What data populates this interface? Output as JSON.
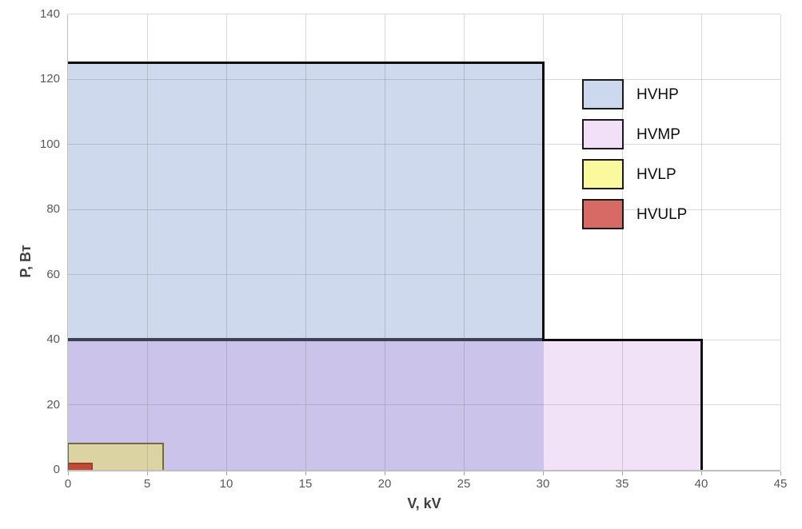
{
  "page": {
    "background": "#FFFFFF"
  },
  "chart_data": {
    "type": "area",
    "title": "",
    "xlabel": "V, kV",
    "ylabel": "P, Вт",
    "xlim": [
      0,
      45
    ],
    "xtick_step": 5,
    "ylim": [
      0,
      140
    ],
    "ytick_step": 20,
    "grid": true,
    "x_tick_labels": [
      "0",
      "5",
      "10",
      "15",
      "20",
      "25",
      "30",
      "35",
      "40",
      "45"
    ],
    "y_tick_labels": [
      "0",
      "20",
      "40",
      "60",
      "80",
      "100",
      "120",
      "140"
    ],
    "legend": {
      "position": "inside-upper-right",
      "entries": [
        "HVHP",
        "HVMP",
        "HVLP",
        "HVULP"
      ]
    },
    "series": [
      {
        "name": "HVHP",
        "v_kV": [
          0,
          30
        ],
        "p_W": [
          0,
          125
        ],
        "legend_color": "#CCD8ED"
      },
      {
        "name": "HVMP",
        "v_kV": [
          0,
          40
        ],
        "p_W": [
          0,
          40
        ],
        "legend_color": "#F2DFF8"
      },
      {
        "name": "HVLP",
        "v_kV": [
          0,
          6
        ],
        "p_W": [
          0,
          8
        ],
        "legend_color": "#FAF99E"
      },
      {
        "name": "HVULP",
        "v_kV": [
          0,
          1.5
        ],
        "p_W": [
          0,
          2
        ],
        "legend_color": "#D86A66"
      }
    ],
    "rendered_region_colors": {
      "hvhp_only": "#CED9EE",
      "hvhp_over_hvmp": "#CBC3E9",
      "hvmp_only": "#F2E2F8",
      "hvlp_overlap": "#DCD3A2",
      "hvulp_overlap": "#C04B39",
      "outline_black": "#0D0D0D",
      "hvmp_top_under_hvhp": "#3D4156",
      "hvlp_outline": "#6F6B45",
      "hvulp_outline": "#9E3D2D"
    },
    "axis": {
      "tick_label_color": "#595959",
      "title_color": "#404040",
      "gridline_color": "#D9D9D9",
      "axis_line_color": "#BFBFBF",
      "tick_mark_color": "#A6A6A6"
    }
  }
}
